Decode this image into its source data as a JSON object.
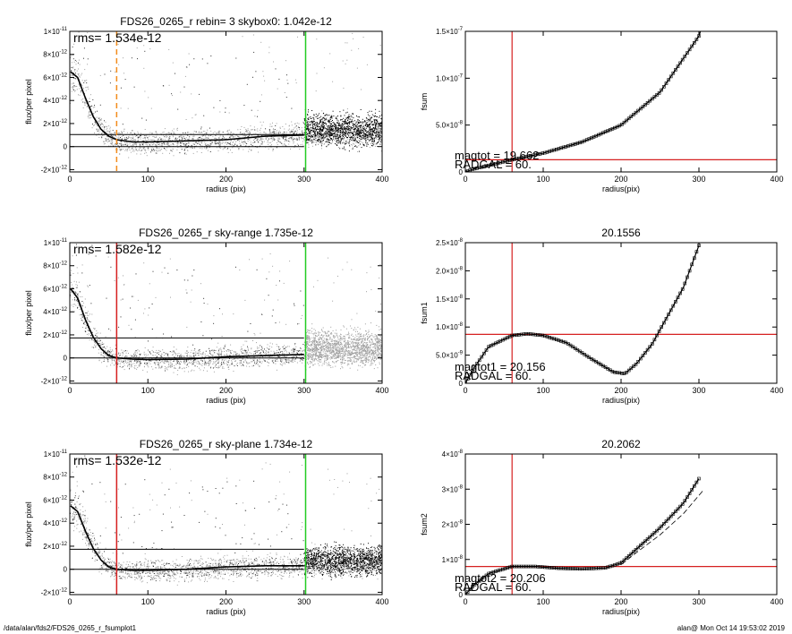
{
  "footer": {
    "path": "/data/alan/fds2/FDS26_0265_r_fsumplot1",
    "stamp": "alan@  Mon Oct 14 19:53:02 2019"
  },
  "colors": {
    "red": "#d62020",
    "green": "#22cc22",
    "orange": "#f28c1c",
    "grey": "#a0a0a0",
    "ink": "#000000"
  },
  "chart_data": [
    {
      "type": "scatter",
      "title": "FDS26_0265_r rebin= 3    skybox0:  1.042e-12",
      "xlabel": "radius (pix)",
      "ylabel": "flux/per pixel",
      "xlim": [
        0,
        400
      ],
      "ylim": [
        -2.2e-12,
        1e-11
      ],
      "xticks": [
        0,
        100,
        200,
        300,
        400
      ],
      "yticks": [
        {
          "v": -2e-12,
          "m": "-2",
          "e": "-12"
        },
        {
          "v": 0,
          "m": "0",
          "e": ""
        },
        {
          "v": 2e-12,
          "m": "2",
          "e": "-12"
        },
        {
          "v": 4e-12,
          "m": "4",
          "e": "-12"
        },
        {
          "v": 6e-12,
          "m": "6",
          "e": "-12"
        },
        {
          "v": 8e-12,
          "m": "8",
          "e": "-12"
        },
        {
          "v": 1e-11,
          "m": "1",
          "e": "-11"
        }
      ],
      "annotation": "rms= 1.534e-12",
      "hlines": [
        1.042e-12,
        0
      ],
      "vlines": [
        {
          "x": 60,
          "color": "orange",
          "dashed": true
        },
        {
          "x": 302,
          "color": "green",
          "dashed": false
        }
      ],
      "profile": [
        [
          1,
          6.5e-12
        ],
        [
          10,
          6e-12
        ],
        [
          20,
          4.2e-12
        ],
        [
          30,
          2.6e-12
        ],
        [
          40,
          1.5e-12
        ],
        [
          50,
          9e-13
        ],
        [
          60,
          6e-13
        ],
        [
          80,
          4e-13
        ],
        [
          100,
          4e-13
        ],
        [
          150,
          5e-13
        ],
        [
          200,
          6e-13
        ],
        [
          250,
          9e-13
        ],
        [
          300,
          1e-12
        ]
      ],
      "scatter_region": [
        {
          "x0": 300,
          "x1": 400,
          "center": 1.5e-12,
          "spread": 2e-12,
          "color": "ink"
        }
      ]
    },
    {
      "type": "line",
      "title": "",
      "xlabel": "radius(pix)",
      "ylabel": "fsum",
      "xlim": [
        0,
        400
      ],
      "ylim": [
        0,
        1.5e-07
      ],
      "xticks": [
        0,
        100,
        200,
        300,
        400
      ],
      "yticks": [
        {
          "v": 0,
          "m": "0",
          "e": ""
        },
        {
          "v": 5e-08,
          "m": "5.0",
          "e": "-8",
          "mult": true
        },
        {
          "v": 1e-07,
          "m": "1.0",
          "e": "-7",
          "mult": true
        },
        {
          "v": 1.5e-07,
          "m": "1.5",
          "e": "-7",
          "mult": true
        }
      ],
      "annotations": [
        "magtot =   19.662",
        "RADGAL =     60."
      ],
      "vline": 60,
      "hline": 1.3e-08,
      "series": [
        [
          0,
          0
        ],
        [
          10,
          3e-09
        ],
        [
          30,
          7e-09
        ],
        [
          60,
          1.3e-08
        ],
        [
          100,
          2e-08
        ],
        [
          150,
          3.2e-08
        ],
        [
          200,
          5e-08
        ],
        [
          250,
          8.5e-08
        ],
        [
          300,
          1.45e-07
        ],
        [
          302,
          1.5e-07
        ]
      ]
    },
    {
      "type": "scatter",
      "title": "FDS26_0265_r sky-range  1.735e-12",
      "xlabel": "radius (pix)",
      "ylabel": "flux/per pixel",
      "xlim": [
        0,
        400
      ],
      "ylim": [
        -2.2e-12,
        1e-11
      ],
      "xticks": [
        0,
        100,
        200,
        300,
        400
      ],
      "yticks": [
        {
          "v": -2e-12,
          "m": "-2",
          "e": "-12"
        },
        {
          "v": 0,
          "m": "0",
          "e": ""
        },
        {
          "v": 2e-12,
          "m": "2",
          "e": "-12"
        },
        {
          "v": 4e-12,
          "m": "4",
          "e": "-12"
        },
        {
          "v": 6e-12,
          "m": "6",
          "e": "-12"
        },
        {
          "v": 8e-12,
          "m": "8",
          "e": "-12"
        },
        {
          "v": 1e-11,
          "m": "1",
          "e": "-11"
        }
      ],
      "annotation": "rms= 1.582e-12",
      "hlines": [
        1.735e-12,
        0
      ],
      "vlines": [
        {
          "x": 60,
          "color": "red",
          "dashed": false
        },
        {
          "x": 302,
          "color": "green",
          "dashed": false
        }
      ],
      "profile": [
        [
          1,
          6e-12
        ],
        [
          10,
          5.2e-12
        ],
        [
          20,
          3.3e-12
        ],
        [
          30,
          1.8e-12
        ],
        [
          40,
          8e-13
        ],
        [
          50,
          2e-13
        ],
        [
          60,
          0
        ],
        [
          80,
          -1e-13
        ],
        [
          100,
          -1.5e-13
        ],
        [
          150,
          -1e-13
        ],
        [
          200,
          1e-13
        ],
        [
          250,
          2e-13
        ],
        [
          300,
          3e-13
        ]
      ],
      "scatter_region": [
        {
          "x0": 300,
          "x1": 400,
          "center": 1e-12,
          "spread": 2.2e-12,
          "color": "grey"
        }
      ]
    },
    {
      "type": "line",
      "title": "20.1556",
      "xlabel": "radius(pix)",
      "ylabel": "fsum1",
      "xlim": [
        0,
        400
      ],
      "ylim": [
        0,
        2.5e-08
      ],
      "xticks": [
        0,
        100,
        200,
        300,
        400
      ],
      "yticks": [
        {
          "v": 0,
          "m": "0",
          "e": ""
        },
        {
          "v": 5e-09,
          "m": "5.0",
          "e": "-9",
          "mult": true
        },
        {
          "v": 1e-08,
          "m": "1.0",
          "e": "-8",
          "mult": true
        },
        {
          "v": 1.5e-08,
          "m": "1.5",
          "e": "-8",
          "mult": true
        },
        {
          "v": 2e-08,
          "m": "2.0",
          "e": "-8",
          "mult": true
        },
        {
          "v": 2.5e-08,
          "m": "2.5",
          "e": "-8",
          "mult": true
        }
      ],
      "annotations": [
        "magtot1 =   20.156",
        "RADGAL =     60."
      ],
      "vline": 60,
      "hline": 8.7e-09,
      "series": [
        [
          0,
          0
        ],
        [
          10,
          2.5e-09
        ],
        [
          30,
          6.5e-09
        ],
        [
          60,
          8.5e-09
        ],
        [
          80,
          8.8e-09
        ],
        [
          100,
          8.5e-09
        ],
        [
          130,
          7.2e-09
        ],
        [
          160,
          4.5e-09
        ],
        [
          190,
          2e-09
        ],
        [
          205,
          1.7e-09
        ],
        [
          220,
          3.5e-09
        ],
        [
          240,
          7e-09
        ],
        [
          260,
          1.2e-08
        ],
        [
          280,
          1.7e-08
        ],
        [
          300,
          2.45e-08
        ]
      ]
    },
    {
      "type": "scatter",
      "title": "FDS26_0265_r sky-plane  1.734e-12",
      "xlabel": "radius (pix)",
      "ylabel": "flux/per pixel",
      "xlim": [
        0,
        400
      ],
      "ylim": [
        -2.2e-12,
        1e-11
      ],
      "xticks": [
        0,
        100,
        200,
        300,
        400
      ],
      "yticks": [
        {
          "v": -2e-12,
          "m": "-2",
          "e": "-12"
        },
        {
          "v": 0,
          "m": "0",
          "e": ""
        },
        {
          "v": 2e-12,
          "m": "2",
          "e": "-12"
        },
        {
          "v": 4e-12,
          "m": "4",
          "e": "-12"
        },
        {
          "v": 6e-12,
          "m": "6",
          "e": "-12"
        },
        {
          "v": 8e-12,
          "m": "8",
          "e": "-12"
        },
        {
          "v": 1e-11,
          "m": "1",
          "e": "-11"
        }
      ],
      "annotation": "rms= 1.532e-12",
      "hlines": [
        1.734e-12,
        0
      ],
      "vlines": [
        {
          "x": 60,
          "color": "red",
          "dashed": false
        },
        {
          "x": 302,
          "color": "green",
          "dashed": false
        }
      ],
      "profile": [
        [
          1,
          5.5e-12
        ],
        [
          10,
          5e-12
        ],
        [
          20,
          3.3e-12
        ],
        [
          30,
          1.8e-12
        ],
        [
          40,
          8e-13
        ],
        [
          50,
          2e-13
        ],
        [
          60,
          0
        ],
        [
          80,
          -1e-13
        ],
        [
          100,
          -1e-13
        ],
        [
          150,
          0
        ],
        [
          200,
          2e-13
        ],
        [
          250,
          3e-13
        ],
        [
          300,
          3e-13
        ]
      ],
      "scatter_region": [
        {
          "x0": 300,
          "x1": 400,
          "center": 8e-13,
          "spread": 1.8e-12,
          "color": "ink"
        }
      ]
    },
    {
      "type": "line",
      "title": "20.2062",
      "xlabel": "radius(pix)",
      "ylabel": "fsum2",
      "xlim": [
        0,
        400
      ],
      "ylim": [
        0,
        4e-08
      ],
      "xticks": [
        0,
        100,
        200,
        300,
        400
      ],
      "yticks": [
        {
          "v": 0,
          "m": "0",
          "e": ""
        },
        {
          "v": 1e-08,
          "m": "1",
          "e": "-8",
          "mult": true
        },
        {
          "v": 2e-08,
          "m": "2",
          "e": "-8",
          "mult": true
        },
        {
          "v": 3e-08,
          "m": "3",
          "e": "-8",
          "mult": true
        },
        {
          "v": 4e-08,
          "m": "4",
          "e": "-8",
          "mult": true
        }
      ],
      "annotations": [
        "magtot2 =   20.206",
        "RADGAL =     60."
      ],
      "vline": 60,
      "hline": 8e-09,
      "series": [
        [
          0,
          0
        ],
        [
          10,
          2.5e-09
        ],
        [
          30,
          6e-09
        ],
        [
          60,
          8e-09
        ],
        [
          90,
          8e-09
        ],
        [
          120,
          7.5e-09
        ],
        [
          150,
          7.3e-09
        ],
        [
          180,
          7.6e-09
        ],
        [
          200,
          9e-09
        ],
        [
          220,
          1.3e-08
        ],
        [
          250,
          1.9e-08
        ],
        [
          280,
          2.6e-08
        ],
        [
          300,
          3.3e-08
        ]
      ],
      "series_dashed": [
        [
          200,
          8.5e-09
        ],
        [
          220,
          1.2e-08
        ],
        [
          250,
          1.7e-08
        ],
        [
          280,
          2.3e-08
        ],
        [
          305,
          2.95e-08
        ]
      ]
    }
  ]
}
